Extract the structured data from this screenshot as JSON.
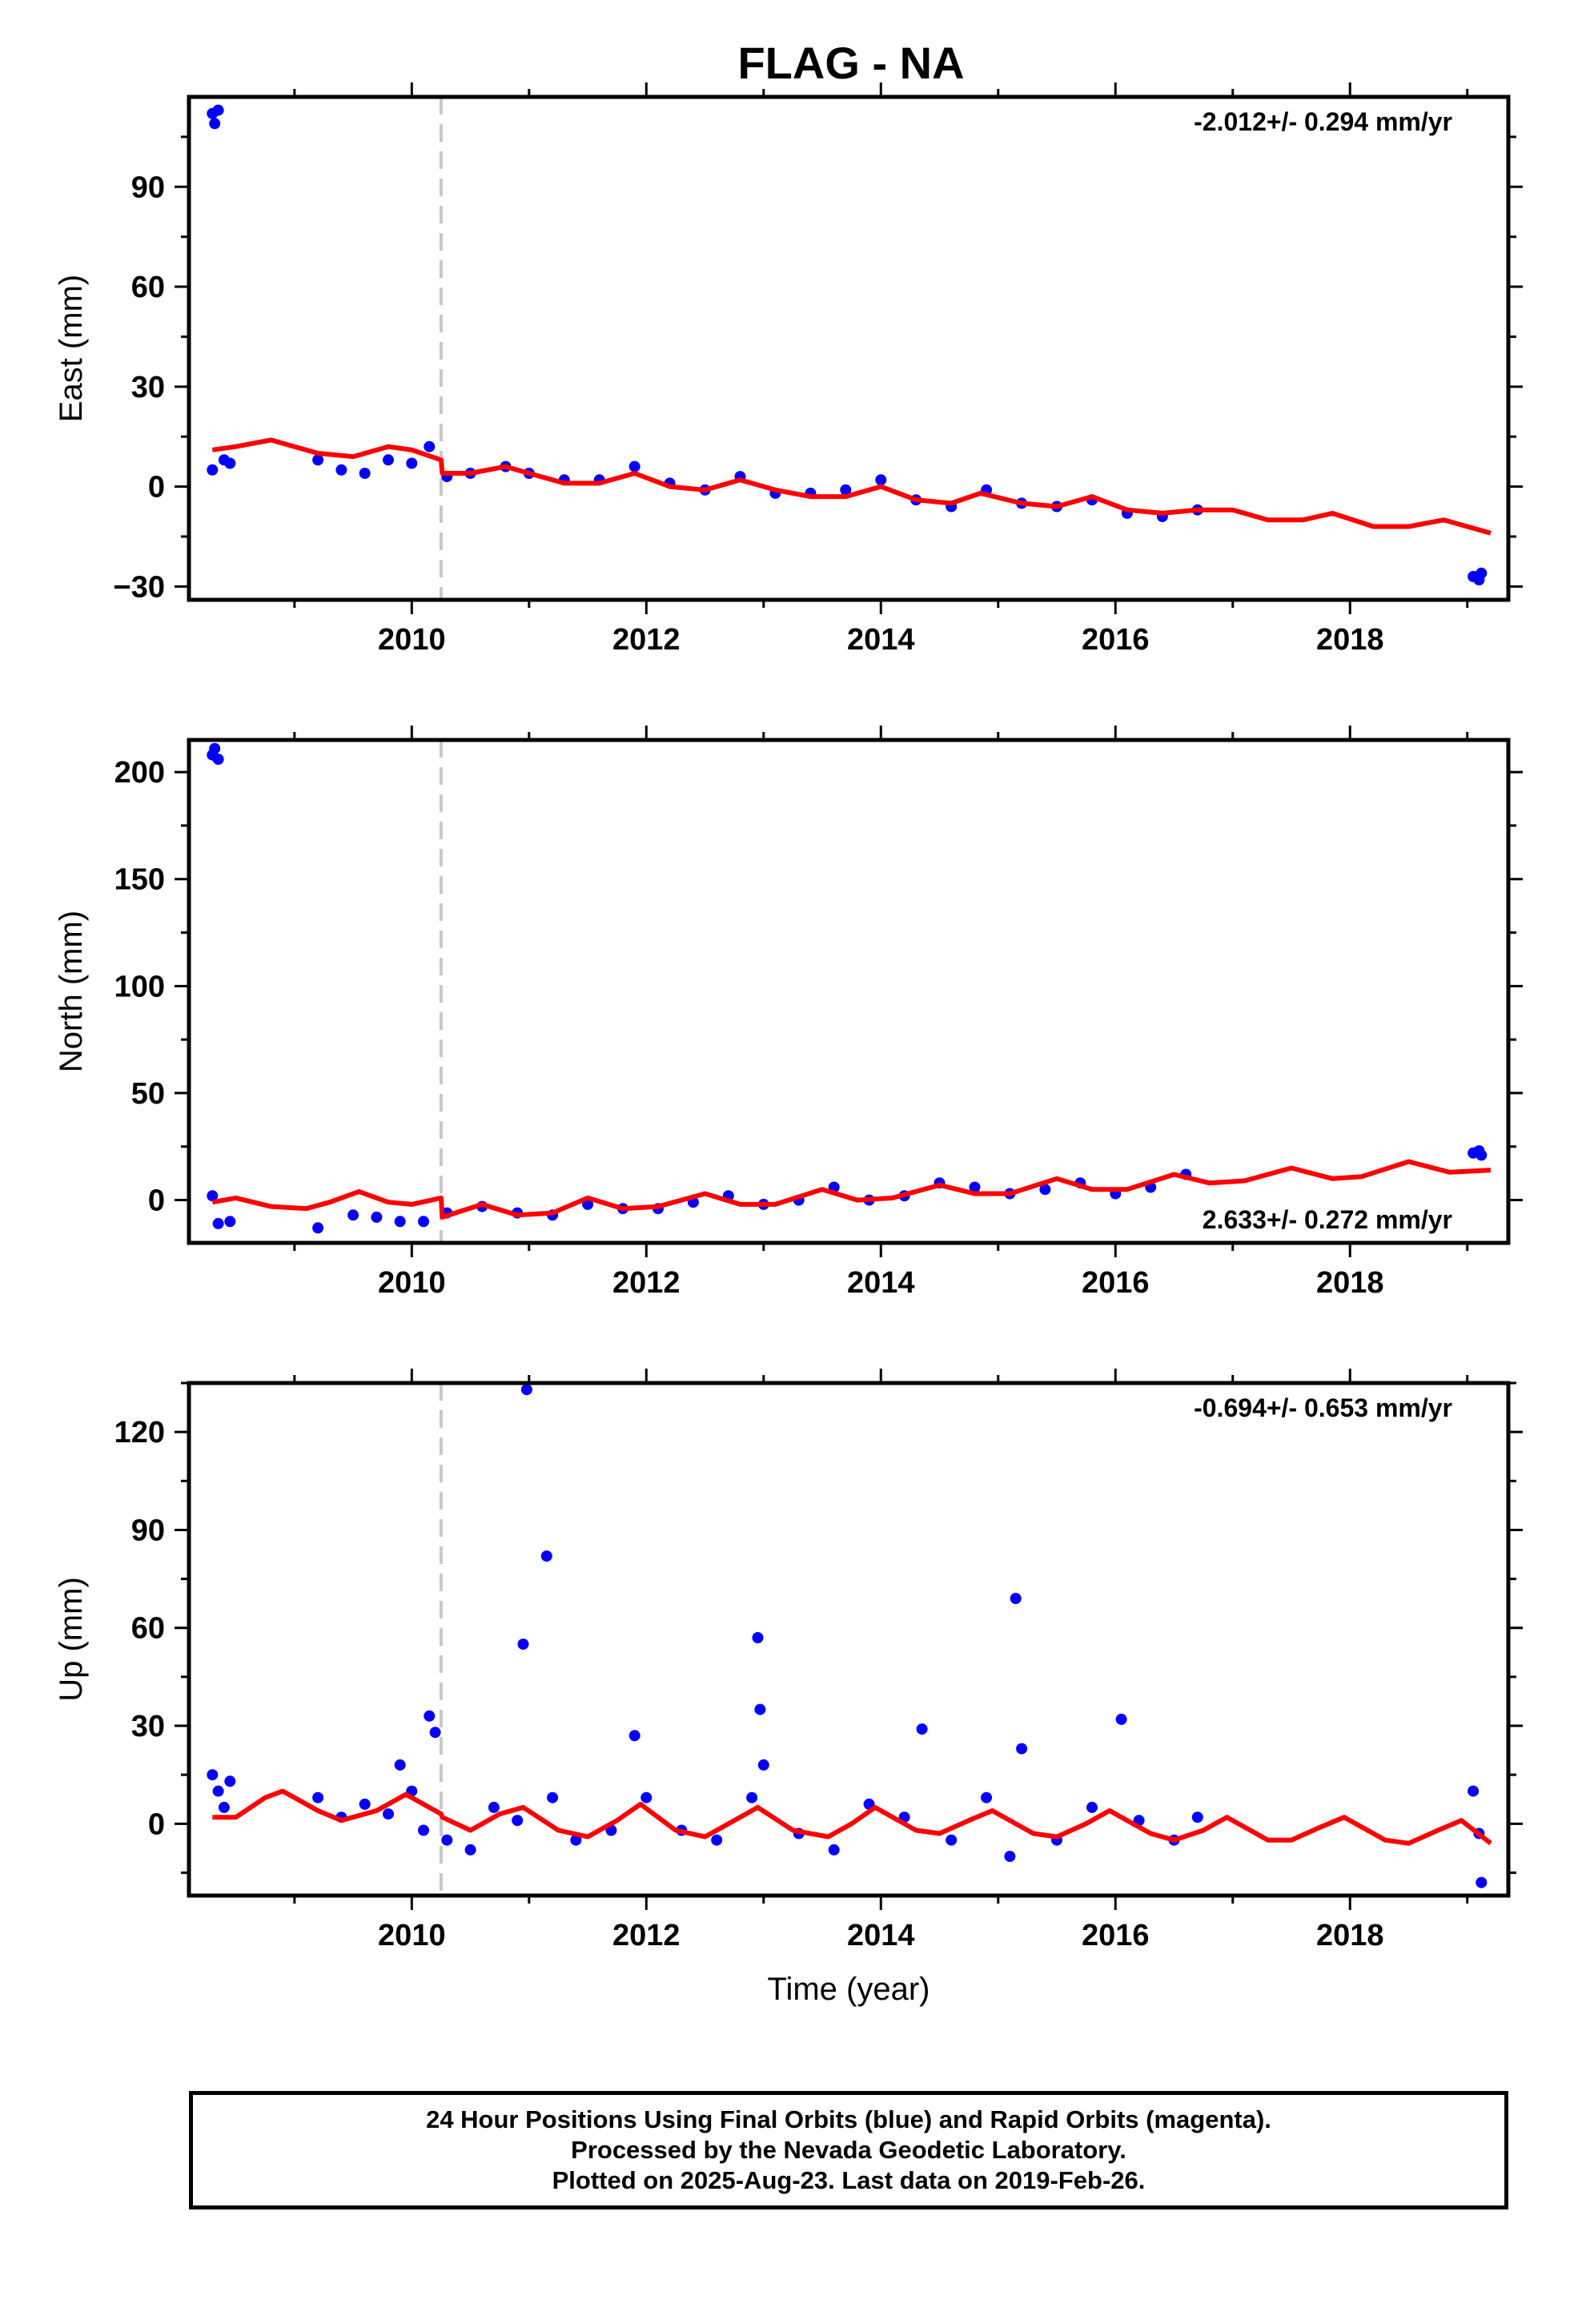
{
  "title": "FLAG - NA",
  "colors": {
    "data": "#0000ff",
    "model": "#ff0000",
    "offset_line": "#c8c8c8",
    "axes": "#000000"
  },
  "footer": {
    "line1": "24 Hour Positions Using Final Orbits (blue) and Rapid Orbits (magenta).",
    "line2": "Processed by the Nevada Geodetic Laboratory.",
    "line3": "Plotted on 2025-Aug-23. Last data on 2019-Feb-26."
  },
  "chart_data": [
    {
      "type": "scatter",
      "ylabel": "East (mm)",
      "xlabel": "",
      "xlim": [
        2008.1,
        2019.35
      ],
      "ylim": [
        -34,
        117
      ],
      "xticks": [
        2010,
        2012,
        2014,
        2016,
        2018
      ],
      "yticks": [
        -30,
        0,
        30,
        60,
        90
      ],
      "velocity_label": "-2.012+/- 0.294 mm/yr",
      "velocity_placement": "top-right",
      "offset_epoch": 2010.25,
      "series": [
        {
          "role": "data",
          "points": [
            [
              2008.3,
              112
            ],
            [
              2008.32,
              109
            ],
            [
              2008.35,
              113
            ],
            [
              2008.3,
              5
            ],
            [
              2008.4,
              8
            ],
            [
              2008.45,
              7
            ],
            [
              2009.2,
              8
            ],
            [
              2009.4,
              5
            ],
            [
              2009.6,
              4
            ],
            [
              2009.8,
              8
            ],
            [
              2010.0,
              7
            ],
            [
              2010.15,
              12
            ],
            [
              2010.3,
              3
            ],
            [
              2010.5,
              4
            ],
            [
              2010.8,
              6
            ],
            [
              2011.0,
              4
            ],
            [
              2011.3,
              2
            ],
            [
              2011.6,
              2
            ],
            [
              2011.9,
              6
            ],
            [
              2012.2,
              1
            ],
            [
              2012.5,
              -1
            ],
            [
              2012.8,
              3
            ],
            [
              2013.1,
              -2
            ],
            [
              2013.4,
              -2
            ],
            [
              2013.7,
              -1
            ],
            [
              2014.0,
              2
            ],
            [
              2014.3,
              -4
            ],
            [
              2014.6,
              -6
            ],
            [
              2014.9,
              -1
            ],
            [
              2015.2,
              -5
            ],
            [
              2015.5,
              -6
            ],
            [
              2015.8,
              -4
            ],
            [
              2016.1,
              -8
            ],
            [
              2016.4,
              -9
            ],
            [
              2016.7,
              -7
            ],
            [
              2019.05,
              -27
            ],
            [
              2019.1,
              -28
            ],
            [
              2019.12,
              -26
            ]
          ]
        },
        {
          "role": "model",
          "points": [
            [
              2008.3,
              11
            ],
            [
              2008.5,
              12
            ],
            [
              2008.8,
              14
            ],
            [
              2009.0,
              12
            ],
            [
              2009.2,
              10
            ],
            [
              2009.5,
              9
            ],
            [
              2009.8,
              12
            ],
            [
              2010.0,
              11
            ],
            [
              2010.25,
              8
            ],
            [
              2010.26,
              4
            ],
            [
              2010.5,
              4
            ],
            [
              2010.8,
              6
            ],
            [
              2011.0,
              4
            ],
            [
              2011.3,
              1
            ],
            [
              2011.6,
              1
            ],
            [
              2011.9,
              4
            ],
            [
              2012.2,
              0
            ],
            [
              2012.5,
              -1
            ],
            [
              2012.8,
              2
            ],
            [
              2013.1,
              -1
            ],
            [
              2013.4,
              -3
            ],
            [
              2013.7,
              -3
            ],
            [
              2014.0,
              0
            ],
            [
              2014.3,
              -4
            ],
            [
              2014.6,
              -5
            ],
            [
              2014.85,
              -2
            ],
            [
              2015.2,
              -5
            ],
            [
              2015.5,
              -6
            ],
            [
              2015.8,
              -3
            ],
            [
              2016.1,
              -7
            ],
            [
              2016.4,
              -8
            ],
            [
              2016.7,
              -7
            ],
            [
              2017.0,
              -7
            ],
            [
              2017.3,
              -10
            ],
            [
              2017.6,
              -10
            ],
            [
              2017.85,
              -8
            ],
            [
              2018.2,
              -12
            ],
            [
              2018.5,
              -12
            ],
            [
              2018.8,
              -10
            ],
            [
              2019.2,
              -14
            ]
          ]
        }
      ]
    },
    {
      "type": "scatter",
      "ylabel": "North (mm)",
      "xlabel": "",
      "xlim": [
        2008.1,
        2019.35
      ],
      "ylim": [
        -20,
        215
      ],
      "xticks": [
        2010,
        2012,
        2014,
        2016,
        2018
      ],
      "yticks": [
        0,
        50,
        100,
        150,
        200
      ],
      "velocity_label": "2.633+/- 0.272 mm/yr",
      "velocity_placement": "bottom-right",
      "offset_epoch": 2010.25,
      "series": [
        {
          "role": "data",
          "points": [
            [
              2008.3,
              208
            ],
            [
              2008.32,
              211
            ],
            [
              2008.35,
              206
            ],
            [
              2008.3,
              2
            ],
            [
              2008.35,
              -11
            ],
            [
              2008.45,
              -10
            ],
            [
              2009.2,
              -13
            ],
            [
              2009.5,
              -7
            ],
            [
              2009.7,
              -8
            ],
            [
              2009.9,
              -10
            ],
            [
              2010.1,
              -10
            ],
            [
              2010.3,
              -6
            ],
            [
              2010.6,
              -3
            ],
            [
              2010.9,
              -6
            ],
            [
              2011.2,
              -7
            ],
            [
              2011.5,
              -2
            ],
            [
              2011.8,
              -4
            ],
            [
              2012.1,
              -4
            ],
            [
              2012.4,
              -1
            ],
            [
              2012.7,
              2
            ],
            [
              2013.0,
              -2
            ],
            [
              2013.3,
              0
            ],
            [
              2013.6,
              6
            ],
            [
              2013.9,
              0
            ],
            [
              2014.2,
              2
            ],
            [
              2014.5,
              8
            ],
            [
              2014.8,
              6
            ],
            [
              2015.1,
              3
            ],
            [
              2015.4,
              5
            ],
            [
              2015.7,
              8
            ],
            [
              2016.0,
              3
            ],
            [
              2016.3,
              6
            ],
            [
              2016.6,
              12
            ],
            [
              2019.05,
              22
            ],
            [
              2019.1,
              23
            ],
            [
              2019.12,
              21
            ]
          ]
        },
        {
          "role": "model",
          "points": [
            [
              2008.3,
              -1
            ],
            [
              2008.5,
              1
            ],
            [
              2008.8,
              -3
            ],
            [
              2009.1,
              -4
            ],
            [
              2009.3,
              -1
            ],
            [
              2009.55,
              4
            ],
            [
              2009.8,
              -1
            ],
            [
              2010.0,
              -2
            ],
            [
              2010.25,
              1
            ],
            [
              2010.26,
              -8
            ],
            [
              2010.6,
              -2
            ],
            [
              2010.9,
              -7
            ],
            [
              2011.2,
              -6
            ],
            [
              2011.5,
              1
            ],
            [
              2011.8,
              -4
            ],
            [
              2012.1,
              -3
            ],
            [
              2012.5,
              3
            ],
            [
              2012.8,
              -2
            ],
            [
              2013.1,
              -2
            ],
            [
              2013.5,
              5
            ],
            [
              2013.8,
              0
            ],
            [
              2014.1,
              1
            ],
            [
              2014.5,
              7
            ],
            [
              2014.8,
              3
            ],
            [
              2015.1,
              3
            ],
            [
              2015.5,
              10
            ],
            [
              2015.8,
              5
            ],
            [
              2016.1,
              5
            ],
            [
              2016.5,
              12
            ],
            [
              2016.8,
              8
            ],
            [
              2017.1,
              9
            ],
            [
              2017.5,
              15
            ],
            [
              2017.85,
              10
            ],
            [
              2018.1,
              11
            ],
            [
              2018.5,
              18
            ],
            [
              2018.85,
              13
            ],
            [
              2019.2,
              14
            ]
          ]
        }
      ]
    },
    {
      "type": "scatter",
      "ylabel": "Up (mm)",
      "xlabel": "Time (year)",
      "xlim": [
        2008.1,
        2019.35
      ],
      "ylim": [
        -22,
        135
      ],
      "xticks": [
        2010,
        2012,
        2014,
        2016,
        2018
      ],
      "yticks": [
        0,
        30,
        60,
        90,
        120
      ],
      "velocity_label": "-0.694+/- 0.653 mm/yr",
      "velocity_placement": "top-right",
      "offset_epoch": 2010.25,
      "series": [
        {
          "role": "data",
          "points": [
            [
              2008.3,
              15
            ],
            [
              2008.35,
              10
            ],
            [
              2008.4,
              5
            ],
            [
              2008.45,
              13
            ],
            [
              2009.2,
              8
            ],
            [
              2009.4,
              2
            ],
            [
              2009.6,
              6
            ],
            [
              2009.8,
              3
            ],
            [
              2009.9,
              18
            ],
            [
              2010.0,
              10
            ],
            [
              2010.1,
              -2
            ],
            [
              2010.15,
              33
            ],
            [
              2010.2,
              28
            ],
            [
              2010.3,
              -5
            ],
            [
              2010.5,
              -8
            ],
            [
              2010.7,
              5
            ],
            [
              2010.9,
              1
            ],
            [
              2010.95,
              55
            ],
            [
              2010.98,
              133
            ],
            [
              2011.15,
              82
            ],
            [
              2011.2,
              8
            ],
            [
              2011.4,
              -5
            ],
            [
              2011.7,
              -2
            ],
            [
              2011.9,
              27
            ],
            [
              2012.0,
              8
            ],
            [
              2012.3,
              -2
            ],
            [
              2012.6,
              -5
            ],
            [
              2012.9,
              8
            ],
            [
              2012.95,
              57
            ],
            [
              2012.97,
              35
            ],
            [
              2013.0,
              18
            ],
            [
              2013.3,
              -3
            ],
            [
              2013.6,
              -8
            ],
            [
              2013.9,
              6
            ],
            [
              2014.2,
              2
            ],
            [
              2014.35,
              29
            ],
            [
              2014.6,
              -5
            ],
            [
              2014.9,
              8
            ],
            [
              2015.1,
              -10
            ],
            [
              2015.15,
              69
            ],
            [
              2015.2,
              23
            ],
            [
              2015.5,
              -5
            ],
            [
              2015.8,
              5
            ],
            [
              2016.05,
              32
            ],
            [
              2016.2,
              1
            ],
            [
              2016.5,
              -5
            ],
            [
              2016.7,
              2
            ],
            [
              2019.05,
              10
            ],
            [
              2019.1,
              -3
            ],
            [
              2019.12,
              -18
            ]
          ]
        },
        {
          "role": "model",
          "points": [
            [
              2008.3,
              2
            ],
            [
              2008.5,
              2
            ],
            [
              2008.75,
              8
            ],
            [
              2008.9,
              10
            ],
            [
              2009.2,
              4
            ],
            [
              2009.4,
              1
            ],
            [
              2009.7,
              4
            ],
            [
              2009.95,
              9
            ],
            [
              2010.25,
              3
            ],
            [
              2010.26,
              2
            ],
            [
              2010.5,
              -2
            ],
            [
              2010.75,
              3
            ],
            [
              2010.95,
              5
            ],
            [
              2011.25,
              -2
            ],
            [
              2011.5,
              -4
            ],
            [
              2011.75,
              1
            ],
            [
              2011.95,
              6
            ],
            [
              2012.25,
              -2
            ],
            [
              2012.5,
              -4
            ],
            [
              2012.75,
              1
            ],
            [
              2012.95,
              5
            ],
            [
              2013.25,
              -2
            ],
            [
              2013.55,
              -4
            ],
            [
              2013.75,
              0
            ],
            [
              2013.95,
              5
            ],
            [
              2014.3,
              -2
            ],
            [
              2014.5,
              -3
            ],
            [
              2014.75,
              1
            ],
            [
              2014.95,
              4
            ],
            [
              2015.3,
              -3
            ],
            [
              2015.5,
              -4
            ],
            [
              2015.75,
              0
            ],
            [
              2015.95,
              4
            ],
            [
              2016.3,
              -3
            ],
            [
              2016.5,
              -5
            ],
            [
              2016.75,
              -2
            ],
            [
              2016.95,
              2
            ],
            [
              2017.3,
              -5
            ],
            [
              2017.5,
              -5
            ],
            [
              2017.75,
              -1
            ],
            [
              2017.95,
              2
            ],
            [
              2018.3,
              -5
            ],
            [
              2018.5,
              -6
            ],
            [
              2018.75,
              -2
            ],
            [
              2018.95,
              1
            ],
            [
              2019.2,
              -6
            ]
          ]
        }
      ]
    }
  ]
}
